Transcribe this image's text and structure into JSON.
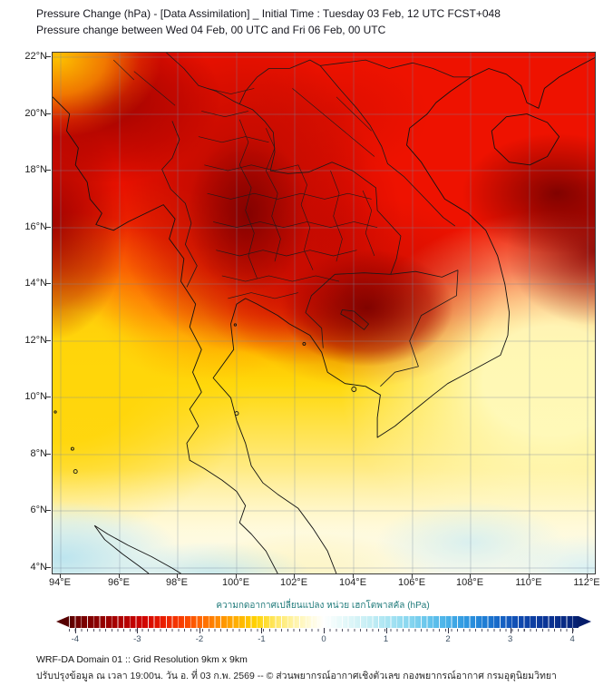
{
  "title": {
    "line1": "Pressure Change (hPa) - [Data Assimilation] _ Initial Time : Tuesday 03 Feb, 12 UTC FCST+048",
    "line2": "Pressure change between Wed 04 Feb, 00 UTC and Fri 06 Feb, 00 UTC"
  },
  "map": {
    "y_axis": {
      "labels": [
        "22°N",
        "20°N",
        "18°N",
        "16°N",
        "14°N",
        "12°N",
        "10°N",
        "8°N",
        "6°N",
        "4°N"
      ]
    },
    "x_axis": {
      "labels": [
        "94°E",
        "96°E",
        "98°E",
        "100°E",
        "102°E",
        "104°E",
        "106°E",
        "108°E",
        "110°E",
        "112°E"
      ]
    },
    "field_colors": {
      "strong_negative": "#7a0000",
      "negative": "#ee1200",
      "weak_negative": "#ffd90c",
      "near_zero": "#ffffff",
      "weak_positive": "#bde6f0"
    }
  },
  "colorbar": {
    "label": "ความกดอากาศเปลี่ยนแปลง หน่วย เฮกโตพาสคัล (hPa)",
    "label_color": "#1f7a7a",
    "units": "hPa",
    "ticks": [
      "-4",
      "-3",
      "-2",
      "-1",
      "0",
      "1",
      "2",
      "3",
      "4"
    ],
    "range_min": -4.1,
    "range_max": 4.1,
    "stops": [
      {
        "v": -4.1,
        "c": "#560000"
      },
      {
        "v": -4.0,
        "c": "#6d0000"
      },
      {
        "v": -3.6,
        "c": "#8f0000"
      },
      {
        "v": -3.2,
        "c": "#b40000"
      },
      {
        "v": -2.9,
        "c": "#cf0400"
      },
      {
        "v": -2.6,
        "c": "#e81c00"
      },
      {
        "v": -2.3,
        "c": "#f83c00"
      },
      {
        "v": -2.0,
        "c": "#ff6400"
      },
      {
        "v": -1.7,
        "c": "#ff8c00"
      },
      {
        "v": -1.4,
        "c": "#ffb000"
      },
      {
        "v": -1.1,
        "c": "#ffd200"
      },
      {
        "v": -0.8,
        "c": "#ffe65c"
      },
      {
        "v": -0.5,
        "c": "#fff3a2"
      },
      {
        "v": -0.2,
        "c": "#fffbdd"
      },
      {
        "v": 0,
        "c": "#ffffff"
      },
      {
        "v": 0.2,
        "c": "#eefbfb"
      },
      {
        "v": 0.5,
        "c": "#d8f4f7"
      },
      {
        "v": 0.8,
        "c": "#bfecf4"
      },
      {
        "v": 1.1,
        "c": "#a3e2f2"
      },
      {
        "v": 1.4,
        "c": "#85d5ef"
      },
      {
        "v": 1.7,
        "c": "#65c4ec"
      },
      {
        "v": 2.0,
        "c": "#47b0e8"
      },
      {
        "v": 2.3,
        "c": "#2f97e0"
      },
      {
        "v": 2.6,
        "c": "#1e7cd4"
      },
      {
        "v": 2.9,
        "c": "#155fc2"
      },
      {
        "v": 3.2,
        "c": "#0f47ac"
      },
      {
        "v": 3.6,
        "c": "#0a3394"
      },
      {
        "v": 4.0,
        "c": "#07257c"
      },
      {
        "v": 4.1,
        "c": "#051d6a"
      }
    ]
  },
  "footer": {
    "line1": "WRF-DA Domain 01 :: Grid Resolution 9km x 9km",
    "line2": "ปรับปรุงข้อมูล ณ เวลา 19:00น. วัน อ. ที่ 03 ก.พ. 2569 -- © ส่วนพยากรณ์อากาศเชิงตัวเลข กองพยากรณ์อากาศ กรมอุตุนิยมวิทยา"
  },
  "chart_data": {
    "type": "heatmap",
    "title": "Pressure Change (hPa) - [Data Assimilation]",
    "x_range_deg_east": [
      94,
      112
    ],
    "y_range_deg_north": [
      4,
      22
    ],
    "x_ticks": [
      94,
      96,
      98,
      100,
      102,
      104,
      106,
      108,
      110,
      112
    ],
    "y_ticks": [
      4,
      6,
      8,
      10,
      12,
      14,
      16,
      18,
      20,
      22
    ],
    "colorbar_range_hpa": [
      -4,
      4
    ],
    "grid": true,
    "legend_position": "bottom",
    "field_summary": "Negative pressure change (red, down to about -4 hPa) over the north and over Indochina with darkest cores near northern Thailand, the far east edge near 16N 111E and Cambodia near 13N 104E; values rise toward 0 (yellow to white) south of about 13N, with small weakly positive (pale cyan) patches near the southern edge around 4-6N."
  }
}
